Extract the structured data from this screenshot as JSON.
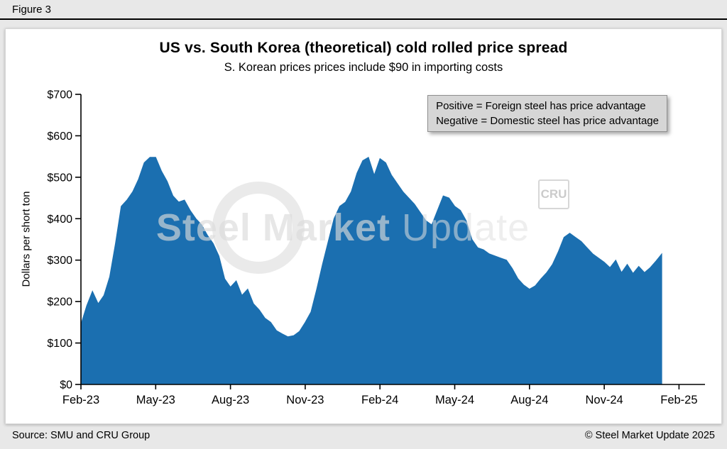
{
  "figure_label": "Figure 3",
  "chart": {
    "title": "US vs. South Korea (theoretical) cold rolled price spread",
    "subtitle": "S. Korean prices prices include $90 in importing costs",
    "y_axis_label": "Dollars per short ton",
    "legend_note": {
      "line1": "Positive = Foreign steel has price advantage",
      "line2": "Negative = Domestic steel has price advantage"
    }
  },
  "watermark": {
    "bold": "Steel Market",
    "light": "Update",
    "cru": "CRU"
  },
  "footer": {
    "source": "Source: SMU and CRU Group",
    "copyright": "© Steel Market Update 2025"
  },
  "chart_data": {
    "type": "area",
    "title": "US vs. South Korea (theoretical) cold rolled price spread",
    "subtitle": "S. Korean prices prices include $90 in importing costs",
    "ylabel": "Dollars per short ton",
    "ylim": [
      0,
      700
    ],
    "y_tick_step": 100,
    "y_tick_labels": [
      "$0",
      "$100",
      "$200",
      "$300",
      "$400",
      "$500",
      "$600",
      "$700"
    ],
    "x_tick_labels": [
      "Feb-23",
      "May-23",
      "Aug-23",
      "Nov-23",
      "Feb-24",
      "May-24",
      "Aug-24",
      "Nov-24",
      "Feb-25"
    ],
    "x_tick_weeks": [
      0,
      13,
      26,
      39,
      52,
      65,
      78,
      91,
      104
    ],
    "x_unit": "weekly, Feb-2023 through Feb-2025",
    "grid": false,
    "legend_position": "top-right note box",
    "fill_color": "#1b6fb0",
    "series": [
      {
        "name": "US minus S. Korea cold rolled price spread ($/short ton)",
        "values": [
          145,
          190,
          225,
          195,
          215,
          260,
          340,
          430,
          445,
          465,
          495,
          535,
          548,
          548,
          515,
          490,
          455,
          440,
          445,
          420,
          400,
          385,
          360,
          340,
          310,
          255,
          235,
          250,
          215,
          230,
          195,
          180,
          160,
          150,
          130,
          122,
          115,
          118,
          128,
          150,
          175,
          230,
          290,
          345,
          400,
          430,
          440,
          465,
          510,
          540,
          548,
          505,
          545,
          535,
          505,
          485,
          465,
          450,
          435,
          415,
          395,
          385,
          420,
          455,
          450,
          430,
          420,
          395,
          350,
          330,
          325,
          315,
          310,
          305,
          300,
          280,
          255,
          240,
          230,
          238,
          255,
          270,
          290,
          320,
          355,
          365,
          355,
          345,
          330,
          315,
          305,
          295,
          282,
          300,
          270,
          290,
          268,
          285,
          270,
          282,
          298,
          315
        ]
      }
    ]
  }
}
